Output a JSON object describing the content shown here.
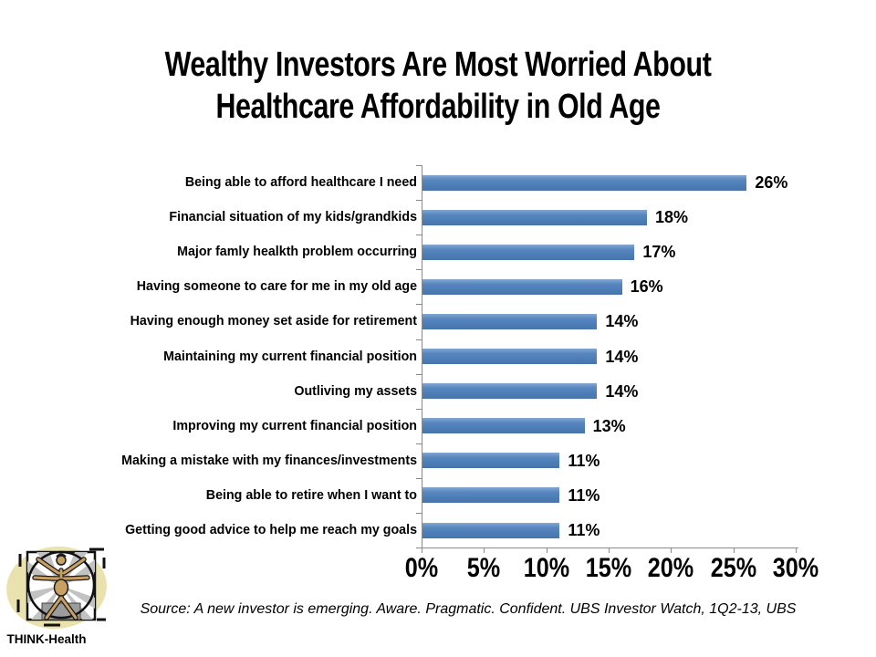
{
  "title": {
    "lines": [
      "Wealthy Investors Are Most Worried About",
      "Healthcare Affordability in Old Age"
    ]
  },
  "chart_data": {
    "type": "bar",
    "orientation": "horizontal",
    "title": "Wealthy Investors Are Most Worried About Healthcare Affordability in Old Age",
    "categories": [
      "Being able to afford healthcare I need",
      "Financial situation of my kids/grandkids",
      "Major famly healkth problem occurring",
      "Having someone to care for me in my old age",
      "Having enough money set aside for retirement",
      "Maintaining my current financial position",
      "Outliving my assets",
      "Improving my current financial position",
      "Making a mistake with my finances/investments",
      "Being able to retire when I want to",
      "Getting good advice to help me reach my goals"
    ],
    "values": [
      26,
      18,
      17,
      16,
      14,
      14,
      14,
      13,
      11,
      11,
      11
    ],
    "value_labels": [
      "26%",
      "18%",
      "17%",
      "16%",
      "14%",
      "14%",
      "14%",
      "13%",
      "11%",
      "11%",
      "11%"
    ],
    "x_tick_labels": [
      "0%",
      "5%",
      "10%",
      "15%",
      "20%",
      "25%",
      "30%"
    ],
    "xlim": [
      0,
      30
    ],
    "xlabel": "",
    "ylabel": "",
    "grid": false,
    "legend": false,
    "bar_color": "#4f81bd"
  },
  "source": {
    "text": "Source: A new investor is emerging. Aware.  Pragmatic. Confident. UBS Investor Watch, 1Q2-13, UBS"
  },
  "logo": {
    "label": "THINK-Health"
  },
  "colors": {
    "bar": "#4f81bd",
    "axis": "#8a8a8a",
    "text": "#000000",
    "logo_blob": "#e9e2ae",
    "logo_skin": "#c9a063"
  }
}
